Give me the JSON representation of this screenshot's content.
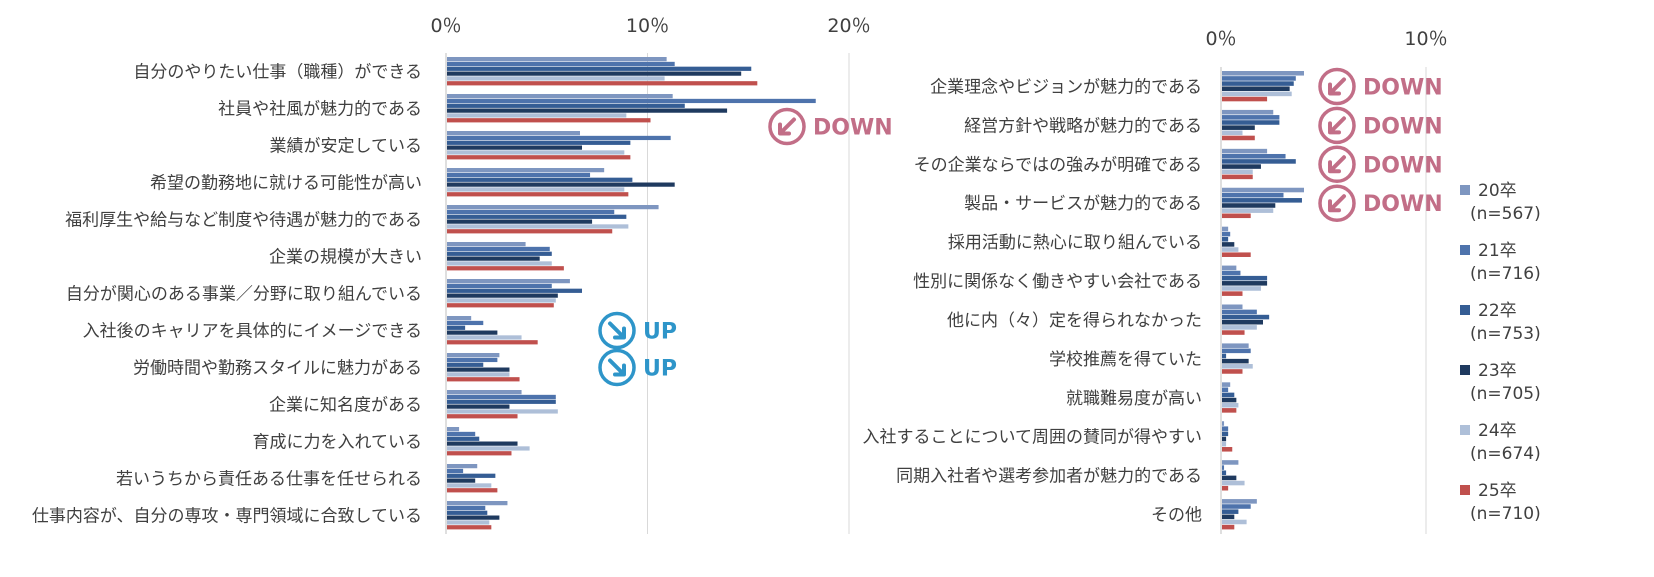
{
  "chart_data": [
    {
      "type": "bar",
      "orientation": "horizontal",
      "xlim": [
        0,
        20
      ],
      "tick_labels": [
        "0％",
        "10％",
        "20％"
      ],
      "categories": [
        "自分のやりたい仕事（職種）ができる",
        "社員や社風が魅力的である",
        "業績が安定している",
        "希望の勤務地に就ける可能性が高い",
        "福利厚生や給与など制度や待遇が魅力的である",
        "企業の規模が大きい",
        "自分が関心のある事業／分野に取り組んでいる",
        "入社後のキャリアを具体的にイメージできる",
        "労働時間や勤務スタイルに魅力がある",
        "企業に知名度がある",
        "育成に力を入れている",
        "若いうちから責任ある仕事を任せられる",
        "仕事内容が、自分の専攻・専門領域に合致している"
      ],
      "series": [
        {
          "name": "20卒\n(n=567)",
          "values": [
            10.9,
            11.2,
            6.6,
            7.8,
            10.5,
            3.9,
            6.1,
            1.2,
            2.6,
            3.7,
            0.6,
            1.5,
            3.0
          ]
        },
        {
          "name": "21卒\n(n=716)",
          "values": [
            11.3,
            18.3,
            11.1,
            7.1,
            8.3,
            5.1,
            5.2,
            1.8,
            2.5,
            5.4,
            1.4,
            0.8,
            1.9
          ]
        },
        {
          "name": "22卒\n(n=753)",
          "values": [
            15.1,
            11.8,
            9.1,
            9.2,
            8.9,
            5.2,
            6.7,
            0.9,
            1.8,
            5.4,
            1.6,
            2.4,
            2.0
          ]
        },
        {
          "name": "23卒\n(n=705)",
          "values": [
            14.6,
            13.9,
            6.7,
            11.3,
            7.2,
            4.6,
            5.5,
            2.5,
            3.1,
            3.1,
            3.5,
            1.4,
            2.6
          ]
        },
        {
          "name": "24卒\n(n=674)",
          "values": [
            10.8,
            8.9,
            8.8,
            8.8,
            9.0,
            5.2,
            5.4,
            3.7,
            3.1,
            5.5,
            4.1,
            2.2,
            2.1
          ]
        },
        {
          "name": "25卒\n(n=710)",
          "values": [
            15.4,
            10.1,
            9.1,
            9.0,
            8.2,
            5.8,
            5.3,
            4.5,
            3.6,
            3.5,
            3.2,
            2.5,
            2.2
          ]
        }
      ],
      "annotations": [
        {
          "text": "DOWN",
          "direction": "down",
          "category_index": 1
        },
        {
          "text": "UP",
          "direction": "up",
          "category_index": 7
        },
        {
          "text": "UP",
          "direction": "up",
          "category_index": 8
        }
      ]
    },
    {
      "type": "bar",
      "orientation": "horizontal",
      "xlim": [
        0,
        10
      ],
      "tick_labels": [
        "0％",
        "10％"
      ],
      "categories": [
        "企業理念やビジョンが魅力的である",
        "経営方針や戦略が魅力的である",
        "その企業ならではの強みが明確である",
        "製品・サービスが魅力的である",
        "採用活動に熱心に取り組んでいる",
        "性別に関係なく働きやすい会社である",
        "他に内（々）定を得られなかった",
        "学校推薦を得ていた",
        "就職難易度が高い",
        "入社することについて周囲の賛同が得やすい",
        "同期入社者や選考参加者が魅力的である",
        "その他"
      ],
      "series": [
        {
          "name": "20卒\n(n=567)",
          "values": [
            4.0,
            2.5,
            2.2,
            4.0,
            0.3,
            0.7,
            1.0,
            1.3,
            0.4,
            0.1,
            0.8,
            1.7
          ]
        },
        {
          "name": "21卒\n(n=716)",
          "values": [
            3.6,
            2.8,
            3.1,
            3.0,
            0.4,
            0.9,
            1.7,
            1.4,
            0.3,
            0.3,
            0.1,
            1.4
          ]
        },
        {
          "name": "22卒\n(n=753)",
          "values": [
            3.5,
            2.8,
            3.6,
            3.9,
            0.3,
            2.2,
            2.3,
            0.2,
            0.6,
            0.3,
            0.2,
            0.8
          ]
        },
        {
          "name": "23卒\n(n=705)",
          "values": [
            3.3,
            1.6,
            1.9,
            2.6,
            0.6,
            2.2,
            2.0,
            1.3,
            0.7,
            0.2,
            0.7,
            0.6
          ]
        },
        {
          "name": "24卒\n(n=674)",
          "values": [
            3.4,
            1.0,
            1.5,
            2.5,
            0.8,
            1.9,
            1.7,
            1.5,
            0.8,
            0.2,
            1.1,
            1.2
          ]
        },
        {
          "name": "25卒\n(n=710)",
          "values": [
            2.2,
            1.6,
            1.5,
            1.4,
            1.4,
            1.0,
            1.1,
            1.0,
            0.7,
            0.5,
            0.3,
            0.6
          ]
        }
      ],
      "annotations": [
        {
          "text": "DOWN",
          "direction": "down",
          "category_index": 0
        },
        {
          "text": "DOWN",
          "direction": "down",
          "category_index": 1
        },
        {
          "text": "DOWN",
          "direction": "down",
          "category_index": 2
        },
        {
          "text": "DOWN",
          "direction": "down",
          "category_index": 3
        }
      ]
    }
  ],
  "legend": {
    "placement": "right",
    "items": [
      {
        "label": "20卒\n(n=567)",
        "color": "#7E96C0"
      },
      {
        "label": "21卒\n(n=716)",
        "color": "#4E73AC"
      },
      {
        "label": "22卒\n(n=753)",
        "color": "#355D94"
      },
      {
        "label": "23卒\n(n=705)",
        "color": "#1F3A5F"
      },
      {
        "label": "24卒\n(n=674)",
        "color": "#AEBFD8"
      },
      {
        "label": "25卒\n(n=710)",
        "color": "#C0504D"
      }
    ]
  },
  "colors": {
    "down": "#C26E87",
    "up": "#2E95C9",
    "axis": "#D0D0D0"
  }
}
